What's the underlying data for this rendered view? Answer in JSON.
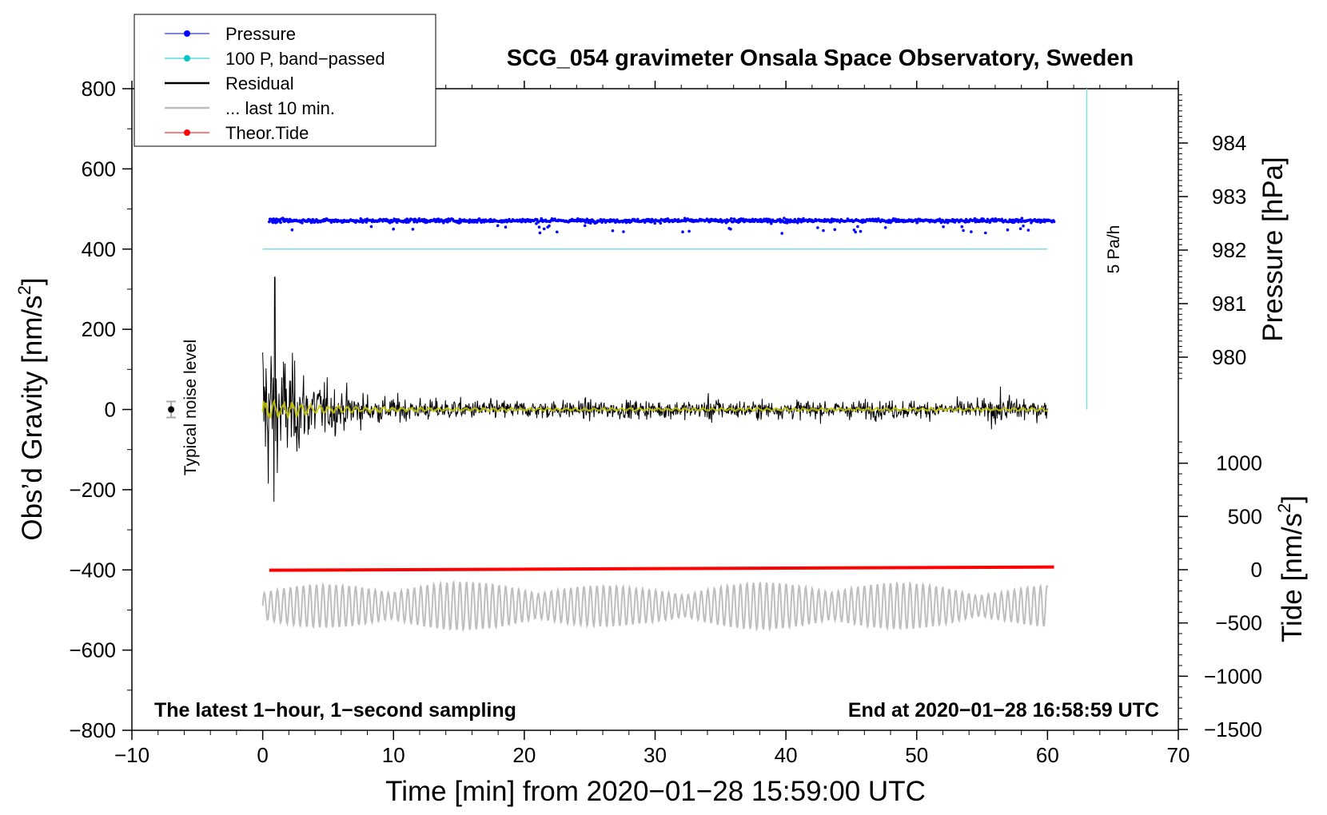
{
  "chart_data": {
    "type": "line",
    "title": "SCG_054 gravimeter Onsala Space Observatory, Sweden",
    "xlabel": "Time [min] from 2020−01−28 15:59:00 UTC",
    "ylabel_left_text": "Obs’d Gravity [nm/s",
    "ylabel_left_sup": "2",
    "ylabel_left_close": "]",
    "ylabel_right_top": "Pressure [hPa]",
    "ylabel_right_bottom_text": "Tide [nm/s",
    "ylabel_right_bottom_sup": "2",
    "ylabel_right_bottom_close": "]",
    "xlim": [
      -10,
      70
    ],
    "ylim": [
      -800,
      800
    ],
    "pressure_axis_range": [
      979,
      985
    ],
    "tide_axis_range": [
      -1500,
      1500
    ],
    "x_ticks": [
      -10,
      0,
      10,
      20,
      30,
      40,
      50,
      60,
      70
    ],
    "x_tick_labels": [
      "−10",
      "0",
      "10",
      "20",
      "30",
      "40",
      "50",
      "60",
      "70"
    ],
    "y_ticks": [
      -800,
      -600,
      -400,
      -200,
      0,
      200,
      400,
      600,
      800
    ],
    "y_tick_labels": [
      "−800",
      "−600",
      "−400",
      "−200",
      "0",
      "200",
      "400",
      "600",
      "800"
    ],
    "pressure_ticks": [
      980,
      981,
      982,
      983,
      984
    ],
    "pressure_tick_labels": [
      "980",
      "981",
      "982",
      "983",
      "984"
    ],
    "tide_ticks": [
      -1500,
      -1000,
      -500,
      0,
      500,
      1000
    ],
    "tide_tick_labels": [
      "−1500",
      "−1000",
      "−500",
      "0",
      "500",
      "1000"
    ],
    "legend": [
      {
        "label": "Pressure",
        "color": "#0000ff",
        "marker": true
      },
      {
        "label": "100 P, band−passed",
        "color": "#00c8c8",
        "marker": true
      },
      {
        "label": "Residual",
        "color": "#000000",
        "marker": false
      },
      {
        "label": "... last 10 min.",
        "color": "#bebebe",
        "marker": false
      },
      {
        "label": "Theor.Tide",
        "color": "#ff0000",
        "marker": true
      }
    ],
    "series": [
      {
        "name": "Pressure",
        "axis": "pressure",
        "x_range": [
          0.5,
          60.5
        ],
        "mean_hPa": 982.55,
        "noise_hPa": 0.05
      },
      {
        "name": "100 P, band-passed",
        "axis": "left",
        "x_range": [
          0,
          60
        ],
        "value": 400
      },
      {
        "name": "Residual",
        "axis": "left",
        "x_range": [
          0,
          60
        ],
        "initial_amplitude": 330,
        "typical_amplitude": 35,
        "min": -230,
        "max": 330
      },
      {
        "name": "Residual (smoothed)",
        "axis": "left",
        "x_range": [
          0,
          60
        ],
        "amplitude": 25
      },
      {
        "name": "... last 10 min.",
        "axis": "left",
        "x_range": [
          0,
          60
        ],
        "center": -490,
        "amplitude": 60
      },
      {
        "name": "Theor.Tide",
        "axis": "tide",
        "x_range": [
          0.5,
          60.5
        ],
        "start": -5,
        "end": 25
      }
    ],
    "noise_marker": {
      "x": -7,
      "value": 0,
      "error": 20,
      "label": "Typical noise level"
    },
    "pressure_rate_bar": {
      "x": 63,
      "from": 0,
      "to": 800,
      "label": "5 Pa/h"
    },
    "annotations": {
      "bottom_left": "The latest 1−hour, 1−second sampling",
      "bottom_right": "End at 2020−01−28 16:58:59 UTC"
    },
    "colors": {
      "pressure": "#0000ff",
      "bandpassed": "#7fe0e0",
      "residual": "#000000",
      "smoothed": "#c8c800",
      "last10": "#bebebe",
      "tide": "#ff0000"
    }
  }
}
